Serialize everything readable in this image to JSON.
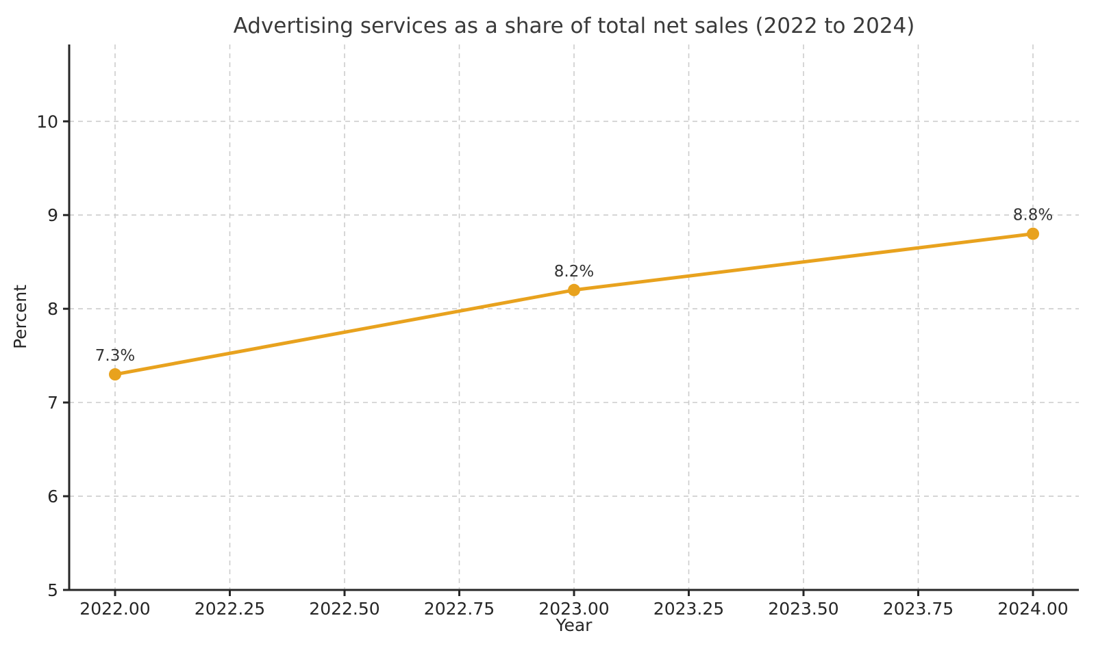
{
  "chart_data": {
    "type": "line",
    "title": "Advertising services as a share of total net sales (2022 to 2024)",
    "xlabel": "Year",
    "ylabel": "Percent",
    "x": [
      2022,
      2023,
      2024
    ],
    "values": [
      7.3,
      8.2,
      8.8
    ],
    "point_labels": [
      "7.3%",
      "8.2%",
      "8.8%"
    ],
    "xlim": [
      2021.9,
      2024.1
    ],
    "ylim": [
      5,
      10.82
    ],
    "xticks": {
      "values": [
        2022.0,
        2022.25,
        2022.5,
        2022.75,
        2023.0,
        2023.25,
        2023.5,
        2023.75,
        2024.0
      ],
      "labels": [
        "2022.00",
        "2022.25",
        "2022.50",
        "2022.75",
        "2023.00",
        "2023.25",
        "2023.50",
        "2023.75",
        "2024.00"
      ]
    },
    "yticks": {
      "values": [
        5,
        6,
        7,
        8,
        9,
        10
      ],
      "labels": [
        "5",
        "6",
        "7",
        "8",
        "9",
        "10"
      ]
    },
    "grid": {
      "visible": true,
      "style": "dashed"
    },
    "legend": {
      "visible": false
    },
    "colors": {
      "line": "#E8A21E",
      "marker": "#E8A21E",
      "grid": "#cccccc",
      "axis": "#262626",
      "title_text": "#3a3a3a",
      "tick_text": "#262626",
      "annotation_text": "#333333",
      "background": "#ffffff"
    }
  }
}
